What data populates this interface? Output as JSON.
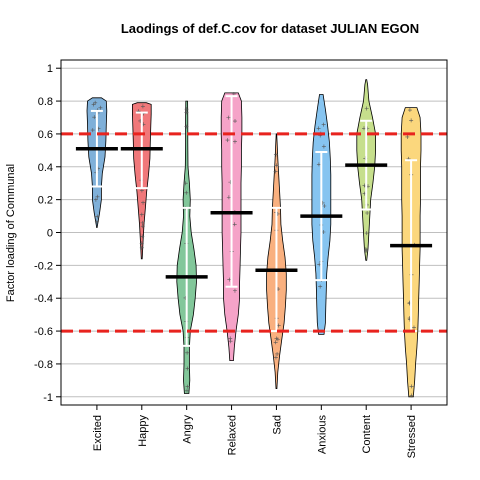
{
  "chart_data": {
    "type": "violin",
    "title": "Laodings of def.C.cov for dataset JULIAN EGON",
    "xlabel": "",
    "ylabel": "Factor loading of Communal",
    "ylim": [
      -1.05,
      1.05
    ],
    "yticks": [
      1,
      0.8,
      0.6,
      0.4,
      0.2,
      0,
      -0.2,
      -0.4,
      -0.6,
      -0.8,
      -1
    ],
    "ytick_labels": [
      "1",
      "0.8",
      "0.6",
      "0.4",
      "0.2",
      "0",
      "-0.2",
      "-0.4",
      "-0.6",
      "-0.8",
      "-1"
    ],
    "grid": true,
    "reference_lines": [
      0.6,
      -0.6
    ],
    "reference_line_color": "#e8231e",
    "categories": [
      "Excited",
      "Happy",
      "Angry",
      "Relaxed",
      "Sad",
      "Anxious",
      "Content",
      "Stressed"
    ],
    "colors": [
      "#7fb0d9",
      "#f0787a",
      "#82c79a",
      "#f5a3c8",
      "#f9b07f",
      "#86c4f0",
      "#c6df8c",
      "#fbd77d"
    ],
    "violins": [
      {
        "min": 0.03,
        "max": 0.82,
        "mean": 0.51,
        "sd_low": 0.28,
        "sd_high": 0.74,
        "profile": [
          [
            0.03,
            0.01
          ],
          [
            0.12,
            0.12
          ],
          [
            0.2,
            0.2
          ],
          [
            0.28,
            0.2
          ],
          [
            0.36,
            0.24
          ],
          [
            0.46,
            0.36
          ],
          [
            0.56,
            0.4
          ],
          [
            0.66,
            0.42
          ],
          [
            0.74,
            0.44
          ],
          [
            0.8,
            0.42
          ],
          [
            0.82,
            0.2
          ]
        ]
      },
      {
        "min": -0.16,
        "max": 0.79,
        "mean": 0.51,
        "sd_low": 0.27,
        "sd_high": 0.73,
        "profile": [
          [
            -0.16,
            0.02
          ],
          [
            -0.05,
            0.06
          ],
          [
            0.05,
            0.1
          ],
          [
            0.15,
            0.16
          ],
          [
            0.25,
            0.22
          ],
          [
            0.35,
            0.3
          ],
          [
            0.45,
            0.36
          ],
          [
            0.55,
            0.38
          ],
          [
            0.65,
            0.4
          ],
          [
            0.72,
            0.42
          ],
          [
            0.78,
            0.42
          ],
          [
            0.79,
            0.2
          ]
        ]
      },
      {
        "min": -0.98,
        "max": 0.8,
        "mean": -0.27,
        "sd_low": -0.69,
        "sd_high": 0.15,
        "profile": [
          [
            -0.98,
            0.1
          ],
          [
            -0.9,
            0.14
          ],
          [
            -0.8,
            0.12
          ],
          [
            -0.7,
            0.12
          ],
          [
            -0.6,
            0.16
          ],
          [
            -0.5,
            0.3
          ],
          [
            -0.4,
            0.38
          ],
          [
            -0.3,
            0.44
          ],
          [
            -0.2,
            0.42
          ],
          [
            -0.1,
            0.32
          ],
          [
            0.0,
            0.2
          ],
          [
            0.1,
            0.14
          ],
          [
            0.2,
            0.16
          ],
          [
            0.3,
            0.12
          ],
          [
            0.4,
            0.06
          ],
          [
            0.55,
            0.05
          ],
          [
            0.7,
            0.05
          ],
          [
            0.8,
            0.04
          ]
        ]
      },
      {
        "min": -0.78,
        "max": 0.85,
        "mean": 0.12,
        "sd_low": -0.33,
        "sd_high": 0.83,
        "profile": [
          [
            -0.78,
            0.08
          ],
          [
            -0.7,
            0.12
          ],
          [
            -0.6,
            0.2
          ],
          [
            -0.5,
            0.3
          ],
          [
            -0.4,
            0.36
          ],
          [
            -0.3,
            0.36
          ],
          [
            -0.2,
            0.38
          ],
          [
            -0.1,
            0.4
          ],
          [
            0.0,
            0.42
          ],
          [
            0.1,
            0.42
          ],
          [
            0.2,
            0.42
          ],
          [
            0.3,
            0.42
          ],
          [
            0.4,
            0.44
          ],
          [
            0.5,
            0.44
          ],
          [
            0.6,
            0.46
          ],
          [
            0.7,
            0.46
          ],
          [
            0.8,
            0.44
          ],
          [
            0.85,
            0.3
          ]
        ]
      },
      {
        "min": -0.95,
        "max": 0.6,
        "mean": -0.23,
        "sd_low": -0.6,
        "sd_high": 0.15,
        "profile": [
          [
            -0.95,
            0.02
          ],
          [
            -0.85,
            0.06
          ],
          [
            -0.75,
            0.14
          ],
          [
            -0.65,
            0.24
          ],
          [
            -0.55,
            0.34
          ],
          [
            -0.45,
            0.4
          ],
          [
            -0.35,
            0.44
          ],
          [
            -0.25,
            0.44
          ],
          [
            -0.15,
            0.38
          ],
          [
            -0.05,
            0.28
          ],
          [
            0.05,
            0.2
          ],
          [
            0.15,
            0.18
          ],
          [
            0.25,
            0.14
          ],
          [
            0.35,
            0.1
          ],
          [
            0.45,
            0.06
          ],
          [
            0.55,
            0.03
          ],
          [
            0.6,
            0.01
          ]
        ]
      },
      {
        "min": -0.62,
        "max": 0.84,
        "mean": 0.1,
        "sd_low": -0.29,
        "sd_high": 0.49,
        "profile": [
          [
            -0.62,
            0.12
          ],
          [
            -0.55,
            0.18
          ],
          [
            -0.45,
            0.2
          ],
          [
            -0.35,
            0.22
          ],
          [
            -0.25,
            0.24
          ],
          [
            -0.15,
            0.3
          ],
          [
            -0.05,
            0.38
          ],
          [
            0.05,
            0.42
          ],
          [
            0.15,
            0.42
          ],
          [
            0.25,
            0.42
          ],
          [
            0.35,
            0.42
          ],
          [
            0.45,
            0.4
          ],
          [
            0.55,
            0.36
          ],
          [
            0.65,
            0.28
          ],
          [
            0.75,
            0.18
          ],
          [
            0.84,
            0.08
          ]
        ]
      },
      {
        "min": -0.17,
        "max": 0.93,
        "mean": 0.41,
        "sd_low": 0.14,
        "sd_high": 0.68,
        "profile": [
          [
            -0.17,
            0.02
          ],
          [
            -0.1,
            0.08
          ],
          [
            0.0,
            0.12
          ],
          [
            0.1,
            0.16
          ],
          [
            0.2,
            0.2
          ],
          [
            0.3,
            0.3
          ],
          [
            0.4,
            0.38
          ],
          [
            0.5,
            0.42
          ],
          [
            0.6,
            0.42
          ],
          [
            0.7,
            0.28
          ],
          [
            0.8,
            0.12
          ],
          [
            0.9,
            0.06
          ],
          [
            0.93,
            0.02
          ]
        ]
      },
      {
        "min": -1.0,
        "max": 0.76,
        "mean": -0.08,
        "sd_low": -0.6,
        "sd_high": 0.44,
        "profile": [
          [
            -1.0,
            0.1
          ],
          [
            -0.9,
            0.16
          ],
          [
            -0.8,
            0.2
          ],
          [
            -0.7,
            0.26
          ],
          [
            -0.6,
            0.3
          ],
          [
            -0.5,
            0.32
          ],
          [
            -0.4,
            0.34
          ],
          [
            -0.3,
            0.36
          ],
          [
            -0.2,
            0.38
          ],
          [
            -0.1,
            0.4
          ],
          [
            0.0,
            0.4
          ],
          [
            0.1,
            0.4
          ],
          [
            0.2,
            0.42
          ],
          [
            0.3,
            0.42
          ],
          [
            0.4,
            0.42
          ],
          [
            0.5,
            0.44
          ],
          [
            0.6,
            0.44
          ],
          [
            0.7,
            0.4
          ],
          [
            0.76,
            0.26
          ]
        ]
      }
    ]
  }
}
